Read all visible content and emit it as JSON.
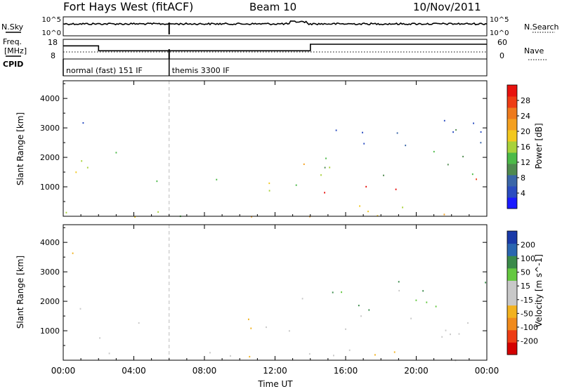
{
  "header": {
    "station": "Fort Hays West (fitACF)",
    "beam": "Beam 10",
    "date": "10/Nov/2011"
  },
  "top_panels": {
    "nsky_label": "N.Sky",
    "nsearch_label": "N.Search",
    "noise_ticks": [
      "10^5",
      "10^0"
    ],
    "freq_label_1": "Freq.",
    "freq_label_2": "[MHz]",
    "freq_ticks": [
      "18",
      "8"
    ],
    "nave_label": "Nave",
    "nave_ticks": [
      "60",
      "0"
    ],
    "cpid_label": "CPID",
    "cpid_modes": [
      {
        "label": "normal (fast) 151 IF",
        "start_hour": 0,
        "end_hour": 6
      },
      {
        "label": "themis 3300 IF",
        "start_hour": 6,
        "end_hour": 24
      }
    ],
    "freq_steps": [
      {
        "start_hour": 0,
        "end_hour": 2,
        "mhz": 14
      },
      {
        "start_hour": 2,
        "end_hour": 14,
        "mhz": 11
      },
      {
        "start_hour": 14,
        "end_hour": 24,
        "mhz": 15
      }
    ]
  },
  "colors": {
    "power_scale": [
      "#1a1aff",
      "#2a4cc0",
      "#3a66a8",
      "#4f8a4f",
      "#4cba48",
      "#a8d23a",
      "#f2c81f",
      "#f4a020",
      "#ee7a1d",
      "#ee3c14",
      "#e8120e"
    ],
    "velocity_scale": [
      "#d40000",
      "#ee3c14",
      "#f08a1c",
      "#f2b21f",
      "#c8c8c8",
      "#c8c8c8",
      "#64c840",
      "#3a8a4a",
      "#2a66b0",
      "#1a3aa8"
    ]
  },
  "chart_data": [
    {
      "type": "heatmap",
      "name": "power",
      "ylabel": "Slant Range [km]",
      "yticks": [
        "1000",
        "2000",
        "3000",
        "4000"
      ],
      "ylim": [
        0,
        4600
      ],
      "xlim": [
        0,
        24
      ],
      "colorbar_label": "Power [dB]",
      "colorbar_ticks": [
        "4",
        "8",
        "12",
        "16",
        "20",
        "24",
        "28"
      ],
      "color_range": [
        0,
        30
      ],
      "regions": [
        {
          "h0": 0.0,
          "h1": 2.0,
          "r0": 1200,
          "r1": 2200,
          "value": 14
        },
        {
          "h0": 0.3,
          "h1": 1.8,
          "r0": 1500,
          "r1": 1900,
          "value": 20
        },
        {
          "h0": 0.5,
          "h1": 1.7,
          "r0": 2900,
          "r1": 3800,
          "value": 8
        },
        {
          "h0": 2.0,
          "h1": 3.4,
          "r0": 600,
          "r1": 1100,
          "value": 12
        },
        {
          "h0": 2.0,
          "h1": 3.2,
          "r0": 1600,
          "r1": 2600,
          "value": 8
        },
        {
          "h0": 3.4,
          "h1": 6.0,
          "r0": 800,
          "r1": 1300,
          "value": 10
        },
        {
          "h0": 8.5,
          "h1": 13.2,
          "r0": 800,
          "r1": 1500,
          "value": 14
        },
        {
          "h0": 10.5,
          "h1": 12.8,
          "r0": 900,
          "r1": 1400,
          "value": 20
        },
        {
          "h0": 13.3,
          "h1": 14.0,
          "r0": 1100,
          "r1": 2200,
          "value": 16
        },
        {
          "h0": 13.4,
          "h1": 13.8,
          "r0": 4200,
          "r1": 4500,
          "value": 8
        },
        {
          "h0": 14.0,
          "h1": 24.0,
          "r0": 1400,
          "r1": 2400,
          "value": 12
        },
        {
          "h0": 14.0,
          "h1": 24.0,
          "r0": 800,
          "r1": 1400,
          "value": 28
        },
        {
          "h0": 14.0,
          "h1": 24.0,
          "r0": 2400,
          "r1": 3400,
          "value": 6
        },
        {
          "h0": 0.0,
          "h1": 24.0,
          "r0": 0,
          "r1": 400,
          "value": 16
        }
      ]
    },
    {
      "type": "heatmap",
      "name": "velocity",
      "ylabel": "Slant Range [km]",
      "yticks": [
        "1000",
        "2000",
        "3000",
        "4000"
      ],
      "ylim": [
        0,
        4600
      ],
      "xlim": [
        0,
        24
      ],
      "xticks": [
        "00:00",
        "04:00",
        "08:00",
        "12:00",
        "16:00",
        "20:00",
        "00:00"
      ],
      "xlabel": "Time UT",
      "colorbar_label": "Velocity [m s^-1]",
      "colorbar_ticks": [
        "-200",
        "-100",
        "-50",
        "-15",
        "15",
        "50",
        "100",
        "200"
      ],
      "color_range": [
        -250,
        250
      ],
      "regions": [
        {
          "h0": 0.0,
          "h1": 2.0,
          "r0": 1200,
          "r1": 2200,
          "value": 0
        },
        {
          "h0": 0.5,
          "h1": 1.7,
          "r0": 2900,
          "r1": 3800,
          "value": 0
        },
        {
          "h0": 2.0,
          "h1": 3.4,
          "r0": 600,
          "r1": 1100,
          "value": 30
        },
        {
          "h0": 2.0,
          "h1": 3.2,
          "r0": 1600,
          "r1": 2600,
          "value": 0
        },
        {
          "h0": 3.4,
          "h1": 6.0,
          "r0": 800,
          "r1": 1300,
          "value": 0
        },
        {
          "h0": 8.5,
          "h1": 13.2,
          "r0": 800,
          "r1": 1500,
          "value": -40
        },
        {
          "h0": 12.5,
          "h1": 13.5,
          "r0": 700,
          "r1": 1400,
          "value": 30
        },
        {
          "h0": 13.3,
          "h1": 14.0,
          "r0": 1100,
          "r1": 2300,
          "value": 30
        },
        {
          "h0": 14.0,
          "h1": 24.0,
          "r0": 800,
          "r1": 1600,
          "value": 0
        },
        {
          "h0": 14.0,
          "h1": 24.0,
          "r0": 1600,
          "r1": 2700,
          "value": 80
        },
        {
          "h0": 0.0,
          "h1": 24.0,
          "r0": 0,
          "r1": 400,
          "value": -40
        }
      ]
    }
  ]
}
